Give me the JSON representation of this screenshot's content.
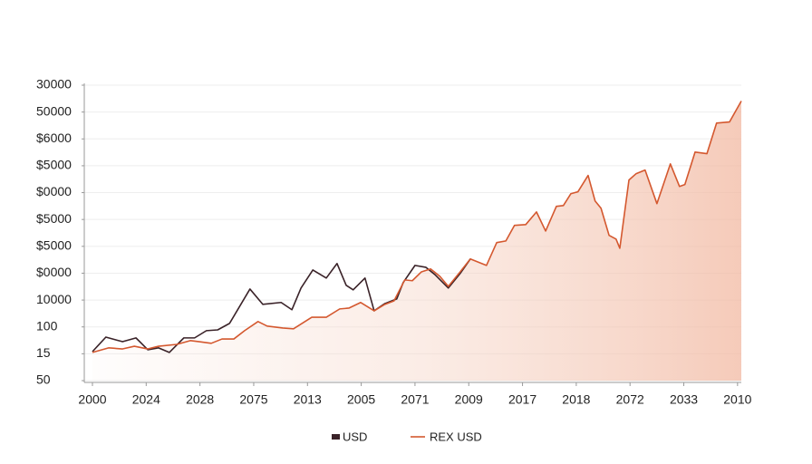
{
  "chart_data": {
    "type": "line",
    "xlim": [
      0,
      12.07
    ],
    "ylim": [
      0,
      11
    ],
    "xticks": [
      {
        "value": 0,
        "label": "2000"
      },
      {
        "value": 1,
        "label": "2024"
      },
      {
        "value": 2,
        "label": "2028"
      },
      {
        "value": 3,
        "label": "2075"
      },
      {
        "value": 4,
        "label": "2013"
      },
      {
        "value": 5,
        "label": "2005"
      },
      {
        "value": 6,
        "label": "2071"
      },
      {
        "value": 7,
        "label": "2009"
      },
      {
        "value": 8,
        "label": "2017"
      },
      {
        "value": 9,
        "label": "2018"
      },
      {
        "value": 10,
        "label": "2072"
      },
      {
        "value": 11,
        "label": "2033"
      },
      {
        "value": 12,
        "label": "2010"
      }
    ],
    "yticks": [
      {
        "value": 0,
        "label": "50"
      },
      {
        "value": 1,
        "label": "15"
      },
      {
        "value": 2,
        "label": "100"
      },
      {
        "value": 3,
        "label": "10000"
      },
      {
        "value": 4,
        "label": "$0000"
      },
      {
        "value": 5,
        "label": "$5000"
      },
      {
        "value": 6,
        "label": "$5000"
      },
      {
        "value": 7,
        "label": "$0000"
      },
      {
        "value": 8,
        "label": "$5000"
      },
      {
        "value": 9,
        "label": "$6000"
      },
      {
        "value": 10,
        "label": "50000"
      },
      {
        "value": 11,
        "label": "30000"
      }
    ],
    "grid": true,
    "series": [
      {
        "name": "USD",
        "color": "#3a2228",
        "x": [
          0,
          0.25,
          0.56,
          0.81,
          1.03,
          1.23,
          1.43,
          1.7,
          1.9,
          2.12,
          2.33,
          2.55,
          2.93,
          3.17,
          3.51,
          3.71,
          3.88,
          4.1,
          4.35,
          4.55,
          4.72,
          4.85,
          5.07,
          5.24,
          5.44,
          5.66,
          5.78,
          6.0,
          6.2,
          6.37,
          6.62,
          6.84,
          7.03
        ],
        "values": [
          1.08,
          1.62,
          1.45,
          1.59,
          1.15,
          1.22,
          1.05,
          1.59,
          1.59,
          1.86,
          1.89,
          2.13,
          3.41,
          2.84,
          2.91,
          2.64,
          3.45,
          4.12,
          3.82,
          4.36,
          3.55,
          3.38,
          3.82,
          2.6,
          2.87,
          3.04,
          3.65,
          4.29,
          4.22,
          3.95,
          3.45,
          3.99,
          4.53
        ]
      },
      {
        "name": "REX USD",
        "color": "#d4582f",
        "x": [
          0,
          0.3,
          0.56,
          0.78,
          1.03,
          1.23,
          1.57,
          1.82,
          1.99,
          2.21,
          2.41,
          2.63,
          2.83,
          3.08,
          3.25,
          3.54,
          3.74,
          4.08,
          4.35,
          4.6,
          4.77,
          4.99,
          5.24,
          5.44,
          5.61,
          5.81,
          5.95,
          6.12,
          6.29,
          6.46,
          6.62,
          6.84,
          7.03,
          7.33,
          7.52,
          7.69,
          7.85,
          8.06,
          8.26,
          8.43,
          8.63,
          8.76,
          8.9,
          9.03,
          9.22,
          9.35,
          9.46,
          9.61,
          9.74,
          9.81,
          9.98,
          10.11,
          10.28,
          10.5,
          10.75,
          10.92,
          11.02,
          11.21,
          11.43,
          11.61,
          11.85,
          12.07
        ],
        "values": [
          1.05,
          1.22,
          1.18,
          1.28,
          1.18,
          1.28,
          1.35,
          1.49,
          1.45,
          1.39,
          1.55,
          1.55,
          1.86,
          2.2,
          2.03,
          1.96,
          1.93,
          2.36,
          2.36,
          2.67,
          2.7,
          2.91,
          2.6,
          2.84,
          2.97,
          3.75,
          3.72,
          4.05,
          4.16,
          3.89,
          3.51,
          4.05,
          4.53,
          4.29,
          5.14,
          5.2,
          5.78,
          5.81,
          6.28,
          5.57,
          6.49,
          6.52,
          6.96,
          7.03,
          7.64,
          6.69,
          6.42,
          5.41,
          5.27,
          4.93,
          7.47,
          7.7,
          7.84,
          6.59,
          8.07,
          7.23,
          7.3,
          8.51,
          8.45,
          9.59,
          9.63,
          10.41
        ]
      }
    ]
  }
}
